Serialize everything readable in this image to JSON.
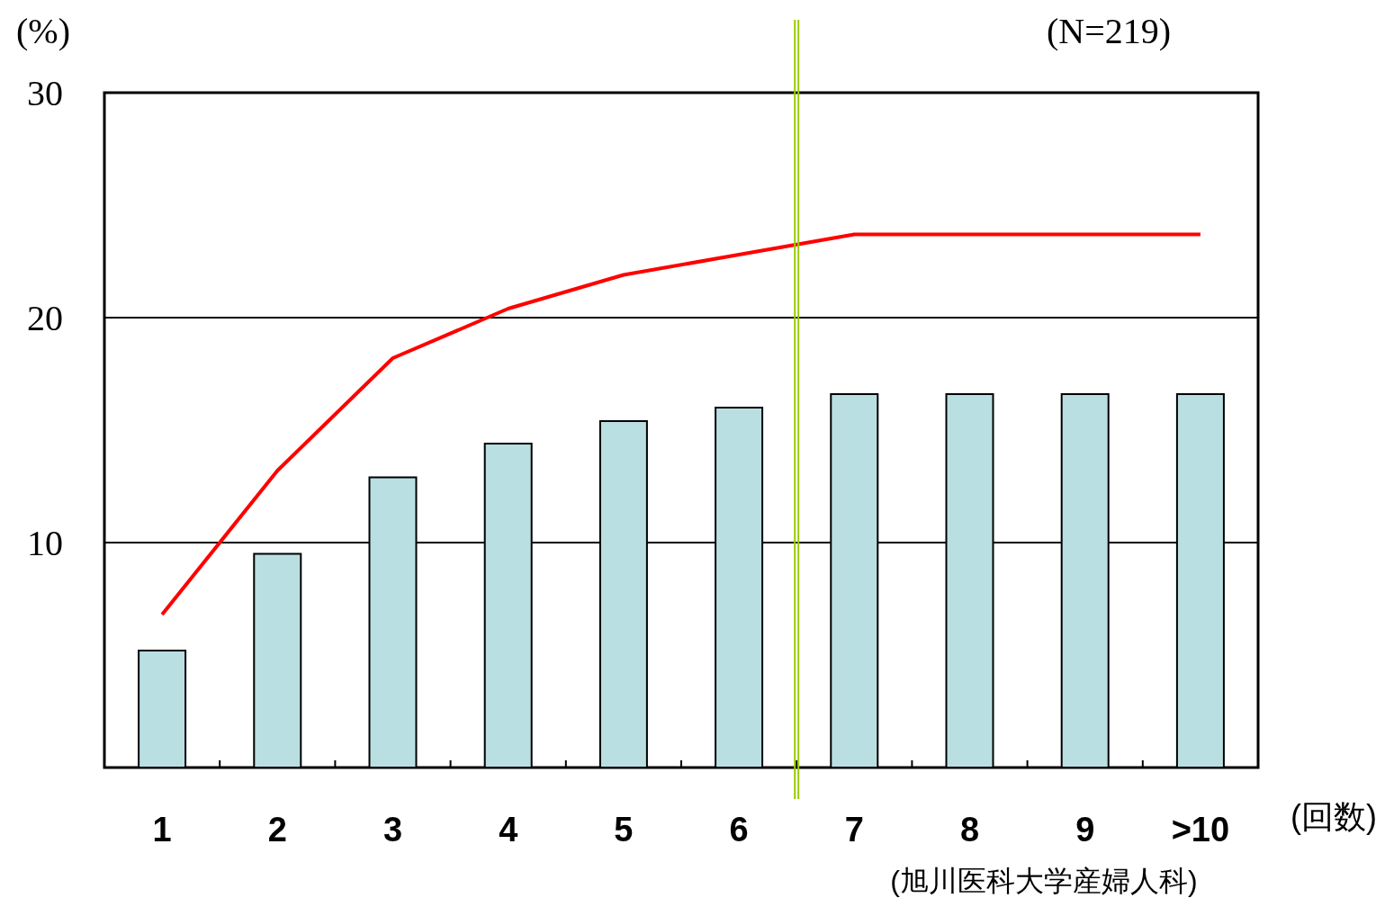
{
  "chart_data": {
    "type": "bar",
    "categories": [
      "1",
      "2",
      "3",
      "4",
      "5",
      "6",
      "7",
      "8",
      "9",
      ">10"
    ],
    "series": [
      {
        "color": "#b9dfe3",
        "values": [
          5.2,
          9.5,
          12.9,
          14.4,
          15.4,
          16.0,
          16.6,
          16.6,
          16.6,
          16.6
        ]
      },
      {
        "type": "line",
        "color": "#ff0000",
        "values": [
          6.8,
          13.2,
          18.2,
          20.4,
          21.9,
          22.8,
          23.7,
          23.7,
          23.7,
          23.7
        ]
      }
    ],
    "ylim": [
      0,
      30
    ],
    "yticks": [
      10,
      20,
      30
    ],
    "grid": "y",
    "ylabel": "(%)",
    "xlabel": "(回数)",
    "annotations": [
      "(N=219)",
      "(旭川医科大学産婦人科)"
    ]
  }
}
